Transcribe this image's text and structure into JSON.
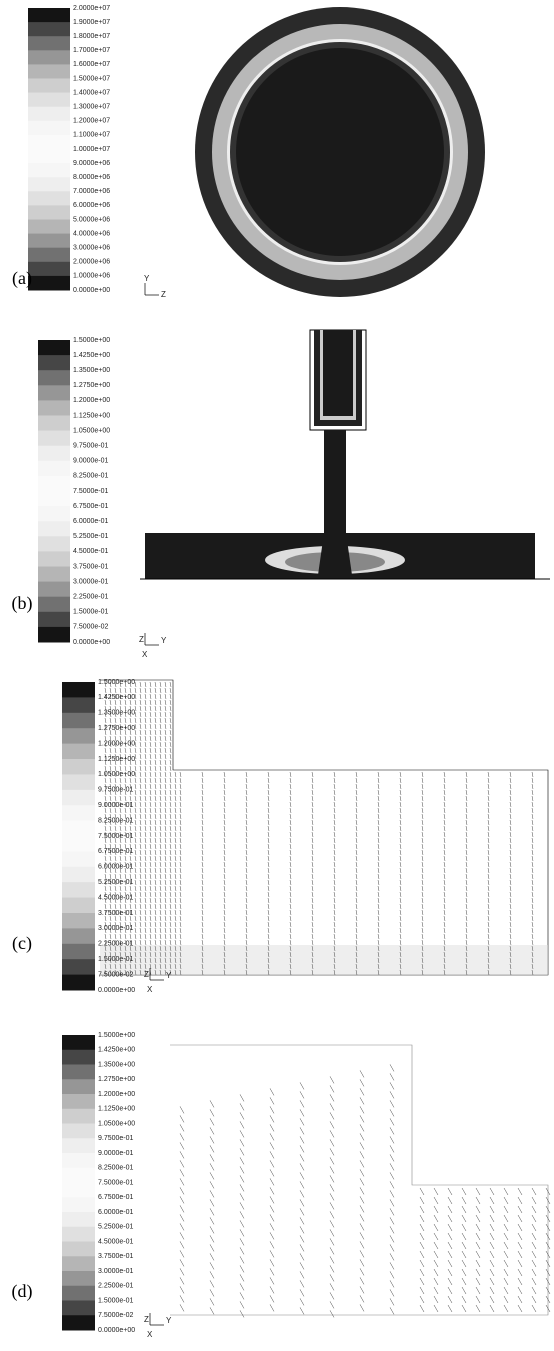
{
  "panels": [
    {
      "label": "(a)",
      "colorbar": [
        "2.0000e+07",
        "1.9000e+07",
        "1.8000e+07",
        "1.7000e+07",
        "1.6000e+07",
        "1.5000e+07",
        "1.4000e+07",
        "1.3000e+07",
        "1.2000e+07",
        "1.1000e+07",
        "1.0000e+07",
        "9.0000e+06",
        "8.0000e+06",
        "7.0000e+06",
        "6.0000e+06",
        "5.0000e+06",
        "4.0000e+06",
        "3.0000e+06",
        "2.0000e+06",
        "1.0000e+06",
        "0.0000e+00"
      ],
      "axes": [
        "Y",
        "Z"
      ]
    },
    {
      "label": "(b)",
      "colorbar": [
        "1.5000e+00",
        "1.4250e+00",
        "1.3500e+00",
        "1.2750e+00",
        "1.2000e+00",
        "1.1250e+00",
        "1.0500e+00",
        "9.7500e-01",
        "9.0000e-01",
        "8.2500e-01",
        "7.5000e-01",
        "6.7500e-01",
        "6.0000e-01",
        "5.2500e-01",
        "4.5000e-01",
        "3.7500e-01",
        "3.0000e-01",
        "2.2500e-01",
        "1.5000e-01",
        "7.5000e-02",
        "0.0000e+00"
      ],
      "axes": [
        "Z",
        "Y",
        "X"
      ]
    },
    {
      "label": "(c)",
      "colorbar": [
        "1.5000e+00",
        "1.4250e+00",
        "1.3500e+00",
        "1.2750e+00",
        "1.2000e+00",
        "1.1250e+00",
        "1.0500e+00",
        "9.7500e-01",
        "9.0000e-01",
        "8.2500e-01",
        "7.5000e-01",
        "6.7500e-01",
        "6.0000e-01",
        "5.2500e-01",
        "4.5000e-01",
        "3.7500e-01",
        "3.0000e-01",
        "2.2500e-01",
        "1.5000e-01",
        "7.5000e-02",
        "0.0000e+00"
      ],
      "axes": [
        "Z",
        "Y",
        "X"
      ]
    },
    {
      "label": "(d)",
      "colorbar": [
        "1.5000e+00",
        "1.4250e+00",
        "1.3500e+00",
        "1.2750e+00",
        "1.2000e+00",
        "1.1250e+00",
        "1.0500e+00",
        "9.7500e-01",
        "9.0000e-01",
        "8.2500e-01",
        "7.5000e-01",
        "6.7500e-01",
        "6.0000e-01",
        "5.2500e-01",
        "4.5000e-01",
        "3.7500e-01",
        "3.0000e-01",
        "2.2500e-01",
        "1.5000e-01",
        "7.5000e-02",
        "0.0000e+00"
      ],
      "axes": [
        "Z",
        "Y",
        "X"
      ]
    }
  ]
}
